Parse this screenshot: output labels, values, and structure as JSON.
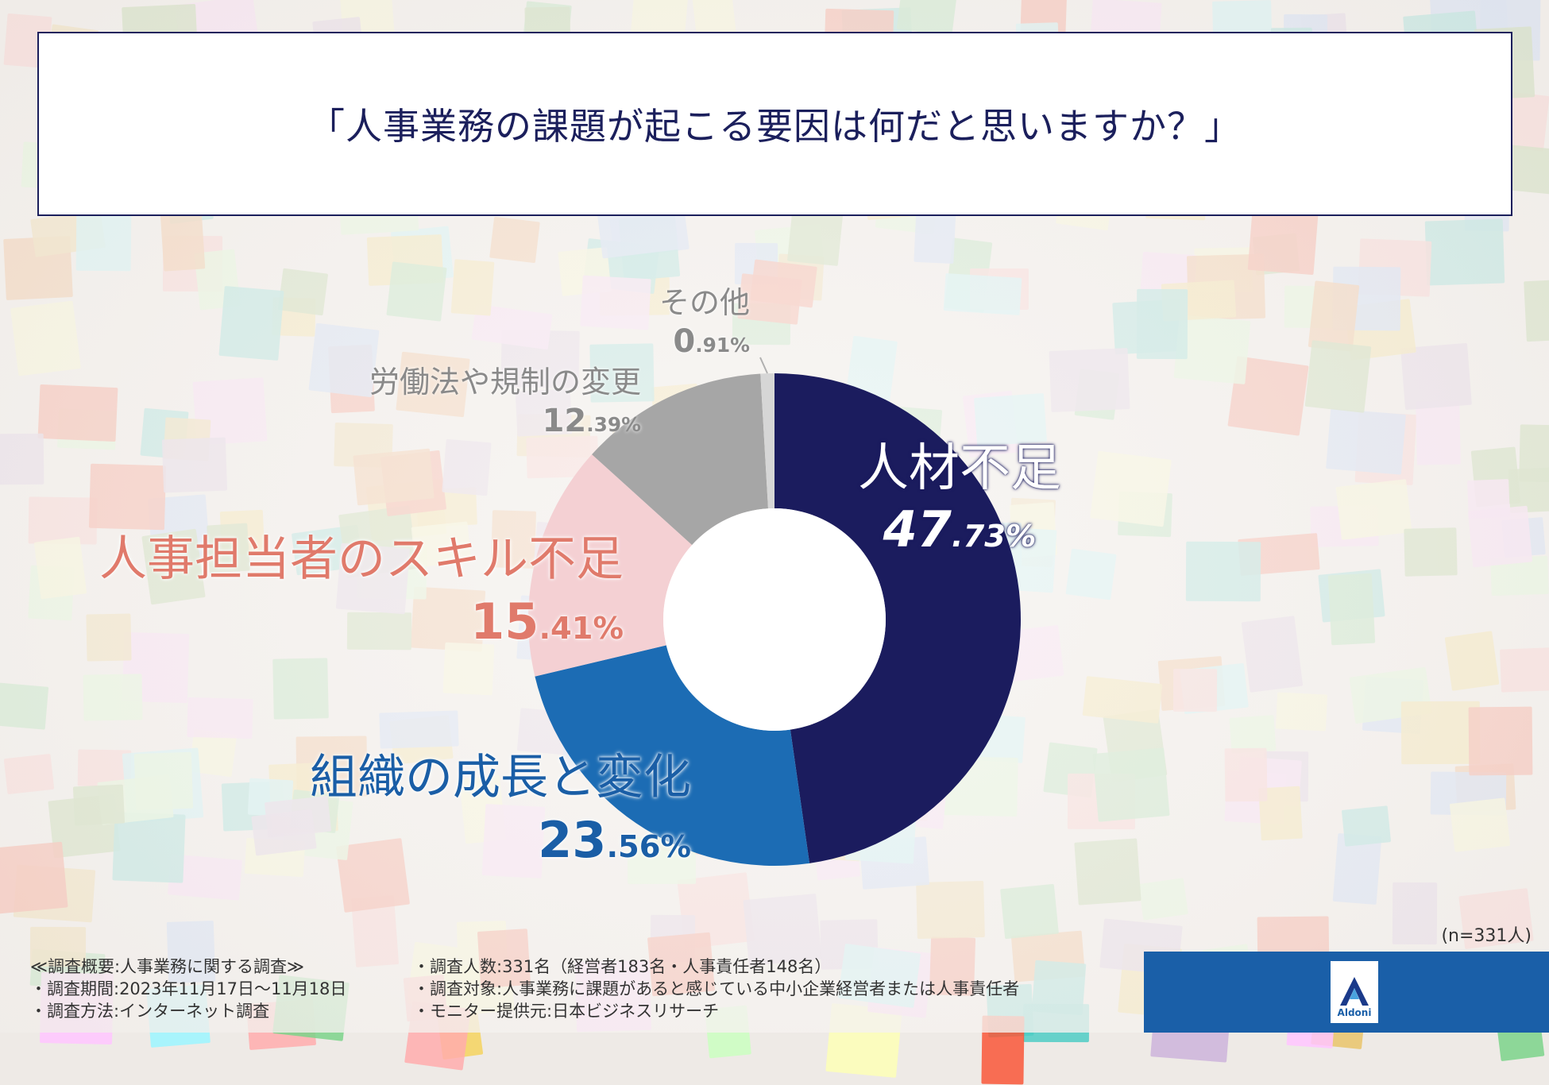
{
  "title": "「人事業務の課題が起こる要因は何だと思いますか？」",
  "n_note": "(n=331人)",
  "footer": {
    "left": [
      "≪調査概要:人事業務に関する調査≫",
      "・調査期間:2023年11月17日〜11月18日",
      "・調査方法:インターネット調査"
    ],
    "right": [
      "・調査人数:331名（経営者183名・人事責任者148名）",
      "・調査対象:人事業務に課題があると感じている中小企業経営者または人事責任者",
      "・モニター提供元:日本ビジネスリサーチ"
    ]
  },
  "logo": {
    "text": "Aldoni"
  },
  "chart_data": {
    "type": "pie",
    "donut": true,
    "unit": "%",
    "categories": [
      "人材不足",
      "組織の成長と変化",
      "人事担当者のスキル不足",
      "労働法や規制の変更",
      "その他"
    ],
    "values": [
      47.73,
      23.56,
      15.41,
      12.39,
      0.91
    ],
    "labels": [
      {
        "name": "人材不足",
        "int": "47",
        "dec": ".73%"
      },
      {
        "name": "組織の成長と変化",
        "int": "23",
        "dec": ".56%"
      },
      {
        "name": "人事担当者のスキル不足",
        "int": "15",
        "dec": ".41%"
      },
      {
        "name": "労働法や規制の変更",
        "int": "12",
        "dec": ".39%"
      },
      {
        "name": "その他",
        "int": "0",
        "dec": ".91%"
      }
    ],
    "colors": [
      "#1b1c5e",
      "#1c6cb4",
      "#f4d0d3",
      "#a6a6a6",
      "#d6d6d6"
    ],
    "label_colors": [
      "#ffffff",
      "#1a5ea6",
      "#e07a6b",
      "#8a8a8a",
      "#8a8a8a"
    ]
  }
}
